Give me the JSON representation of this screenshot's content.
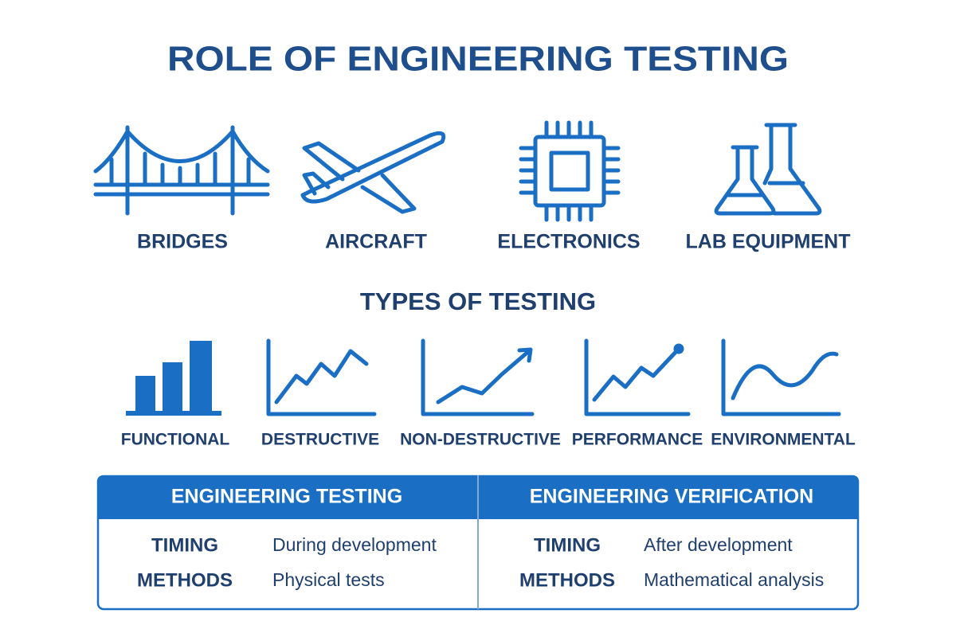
{
  "title": "ROLE OF ENGINEERING TESTING",
  "applications": [
    "BRIDGES",
    "AIRCRAFT",
    "ELECTRONICS",
    "LAB EQUIPMENT"
  ],
  "types_title": "TYPES OF TESTING",
  "types": [
    "FUNCTIONAL",
    "DESTRUCTIVE",
    "NON-DESTRUCTIVE",
    "PERFORMANCE",
    "ENVIRONMENTAL"
  ],
  "comparison": [
    {
      "header": "ENGINEERING TESTING",
      "rows": [
        [
          "TIMING",
          "During development"
        ],
        [
          "METHODS",
          "Physical tests"
        ]
      ]
    },
    {
      "header": "ENGINEERING VERIFICATION",
      "rows": [
        [
          "TIMING",
          "After development"
        ],
        [
          "METHODS",
          "Mathematical analysis"
        ]
      ]
    }
  ]
}
